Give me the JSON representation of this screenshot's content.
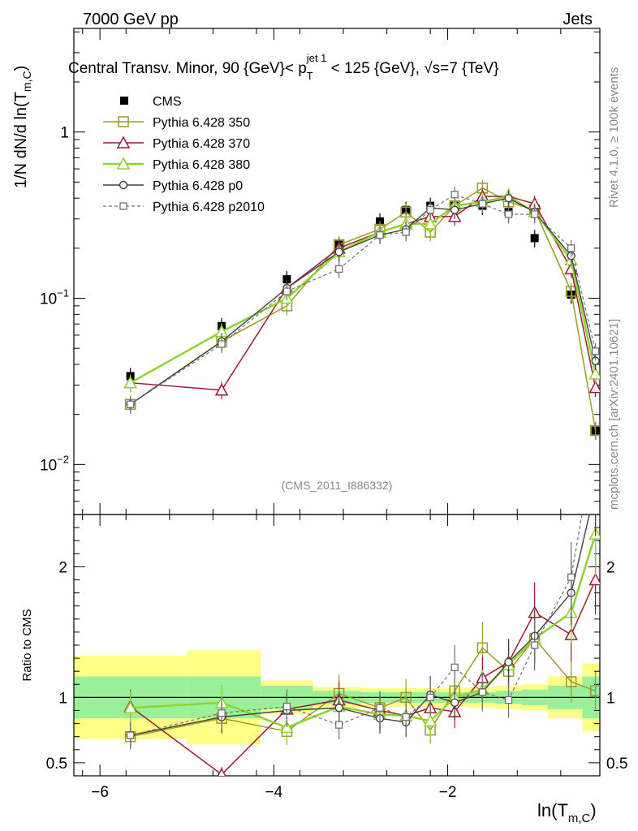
{
  "header": {
    "beam": "7000 GeV pp",
    "process": "Jets",
    "title_pre": "Central Transv. Minor, 90 {GeV}< p",
    "title_sub": "T",
    "title_sup": "jet 1",
    "title_post": " < 125 {GeV}, √s=7 {TeV}",
    "analysis_tag": "(CMS_2011_I886332)",
    "side_label_rivet": "Rivet 4.1.0, ≥ 100k events",
    "side_label_site": "mcplots.cern.ch [arXiv:2401.10621]"
  },
  "colors": {
    "data": "#000000",
    "p350": "#9a9a2a",
    "p370": "#9b1b30",
    "p380": "#8fd42e",
    "p0": "#404040",
    "p2010": "#707070",
    "band_inner": "#99f099",
    "band_outer": "#ffff88"
  },
  "chart_data": {
    "type": "line",
    "ylabel_main": "1/N   dN/d ln(T",
    "ylabel_main_sub": "m,C",
    "ylabel_main_post": ")",
    "ylabel_ratio": "Ratio to CMS",
    "xlabel": "ln(T",
    "xlabel_sub": "m,C",
    "xlabel_post": ")",
    "xlim": [
      -6.3,
      -0.25
    ],
    "ylim_main": [
      0.005,
      4.2
    ],
    "ylim_ratio": [
      0.4,
      2.4
    ],
    "x_ticks": [
      -6,
      -4,
      -2
    ],
    "x_tick_labels": [
      "−6",
      "−4",
      "−2"
    ],
    "y_ticks_main": [
      {
        "value": 1,
        "base": "1",
        "exp": ""
      },
      {
        "value": 0.1,
        "base": "10",
        "exp": "−1"
      },
      {
        "value": 0.01,
        "base": "10",
        "exp": "−2"
      }
    ],
    "y_ticks_ratio": [
      {
        "value": 0.5,
        "label": "0.5"
      },
      {
        "value": 1,
        "label": "1"
      },
      {
        "value": 2,
        "label": "2"
      }
    ],
    "x": [
      -5.65,
      -4.6,
      -3.85,
      -3.25,
      -2.78,
      -2.48,
      -2.2,
      -1.92,
      -1.6,
      -1.3,
      -1.0,
      -0.58,
      -0.3
    ],
    "bin_edges": [
      -6.3,
      -5.0,
      -4.15,
      -3.55,
      -3.0,
      -2.6,
      -2.35,
      -2.05,
      -1.75,
      -1.45,
      -1.15,
      -0.85,
      -0.45,
      -0.25
    ],
    "band_inner": [
      0.16,
      0.16,
      0.09,
      0.05,
      0.04,
      0.04,
      0.04,
      0.04,
      0.04,
      0.05,
      0.06,
      0.09,
      0.16
    ],
    "band_outer": [
      0.32,
      0.36,
      0.13,
      0.08,
      0.07,
      0.07,
      0.07,
      0.07,
      0.08,
      0.09,
      0.1,
      0.16,
      0.26
    ],
    "series": [
      {
        "key": "cms",
        "name": "CMS",
        "values": [
          0.034,
          0.068,
          0.13,
          0.21,
          0.29,
          0.34,
          0.36,
          0.36,
          0.36,
          0.33,
          0.23,
          0.105,
          0.016
        ]
      },
      {
        "key": "p350",
        "name": "Pythia 6.428 350",
        "values": [
          0.023,
          0.055,
          0.09,
          0.21,
          0.26,
          0.33,
          0.25,
          0.36,
          0.46,
          0.38,
          0.34,
          0.11,
          0.016
        ]
      },
      {
        "key": "p370",
        "name": "Pythia 6.428 370",
        "values": [
          0.031,
          0.028,
          0.115,
          0.2,
          0.25,
          0.28,
          0.31,
          0.31,
          0.41,
          0.41,
          0.37,
          0.15,
          0.029
        ]
      },
      {
        "key": "p380",
        "name": "Pythia 6.428 380",
        "values": [
          0.031,
          0.063,
          0.1,
          0.19,
          0.25,
          0.28,
          0.28,
          0.36,
          0.38,
          0.41,
          0.33,
          0.17,
          0.035
        ]
      },
      {
        "key": "p0",
        "name": "Pythia 6.428 p0",
        "values": [
          0.023,
          0.055,
          0.115,
          0.19,
          0.24,
          0.26,
          0.35,
          0.34,
          0.37,
          0.4,
          0.33,
          0.18,
          0.042
        ]
      },
      {
        "key": "p2010",
        "name": "Pythia 6.428 p2010",
        "values": [
          0.023,
          0.053,
          0.11,
          0.15,
          0.24,
          0.25,
          0.34,
          0.42,
          0.37,
          0.32,
          0.32,
          0.2,
          0.048
        ]
      }
    ],
    "ratio_series": [
      {
        "key": "p350",
        "values": [
          0.7,
          0.84,
          0.74,
          1.03,
          0.92,
          1.0,
          0.75,
          1.05,
          1.38,
          1.2,
          1.45,
          1.12,
          1.05
        ]
      },
      {
        "key": "p370",
        "values": [
          0.93,
          0.41,
          0.91,
          0.98,
          0.9,
          0.86,
          0.92,
          0.89,
          1.15,
          1.27,
          1.65,
          1.48,
          1.9
        ]
      },
      {
        "key": "p380",
        "values": [
          0.92,
          0.96,
          0.77,
          0.93,
          0.87,
          0.86,
          0.82,
          1.0,
          1.06,
          1.25,
          1.45,
          1.65,
          2.25
        ]
      },
      {
        "key": "p0",
        "values": [
          0.71,
          0.85,
          0.9,
          0.92,
          0.84,
          0.81,
          1.02,
          0.96,
          1.04,
          1.27,
          1.47,
          1.8,
          2.6
        ]
      },
      {
        "key": "p2010",
        "values": [
          0.71,
          0.88,
          0.93,
          0.79,
          0.92,
          0.85,
          1.0,
          1.23,
          1.04,
          0.98,
          1.4,
          1.92,
          3.0
        ]
      }
    ]
  }
}
